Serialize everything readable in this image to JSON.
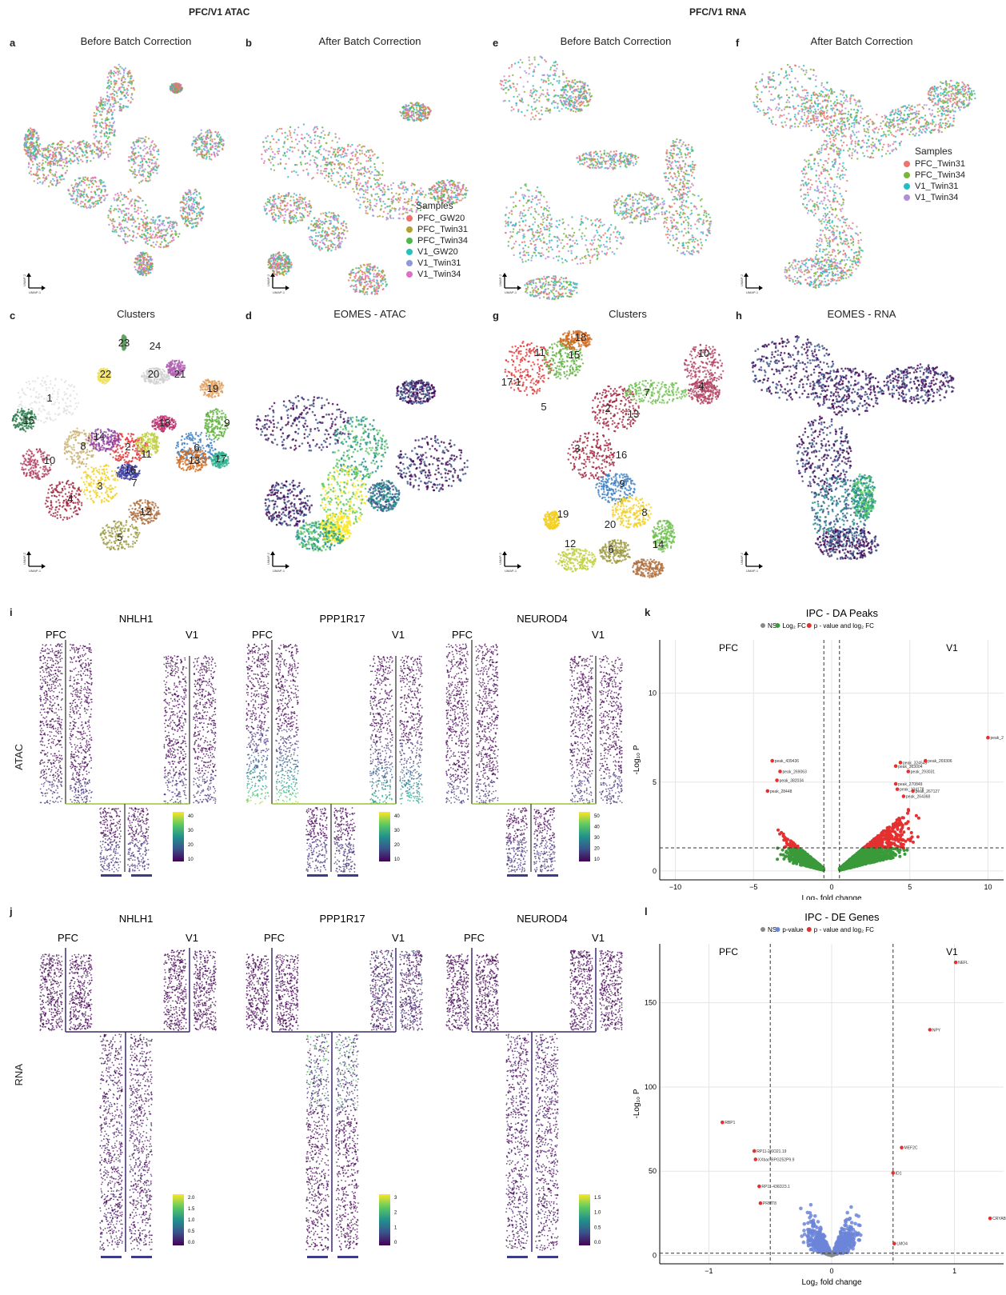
{
  "headings": {
    "atac": "PFC/V1 ATAC",
    "rna": "PFC/V1 RNA"
  },
  "panels": {
    "a": {
      "letter": "a",
      "title": "Before Batch Correction"
    },
    "b": {
      "letter": "b",
      "title": "After Batch Correction"
    },
    "c": {
      "letter": "c",
      "title": "Clusters"
    },
    "d": {
      "letter": "d",
      "title": "EOMES - ATAC"
    },
    "e": {
      "letter": "e",
      "title": "Before Batch Correction"
    },
    "f": {
      "letter": "f",
      "title": "After Batch Correction"
    },
    "g": {
      "letter": "g",
      "title": "Clusters"
    },
    "h": {
      "letter": "h",
      "title": "EOMES - RNA"
    },
    "i": {
      "letter": "i",
      "row_label": "ATAC"
    },
    "j": {
      "letter": "j",
      "row_label": "RNA"
    },
    "k": {
      "letter": "k"
    },
    "l": {
      "letter": "l"
    }
  },
  "umap_axes": {
    "x": "UMAP-1",
    "y": "UMAP-2"
  },
  "legend_atac": {
    "title": "Samples",
    "items": [
      {
        "label": "PFC_GW20",
        "color": "#f0736b"
      },
      {
        "label": "PFC_Twin31",
        "color": "#b5a033"
      },
      {
        "label": "PFC_Twin34",
        "color": "#4db848"
      },
      {
        "label": "V1_GW20",
        "color": "#27bfc0"
      },
      {
        "label": "V1_Twin31",
        "color": "#8e98d8"
      },
      {
        "label": "V1_Twin34",
        "color": "#de6fc6"
      }
    ]
  },
  "legend_rna": {
    "title": "Samples",
    "items": [
      {
        "label": "PFC_Twin31",
        "color": "#f0736b"
      },
      {
        "label": "PFC_Twin34",
        "color": "#77b83a"
      },
      {
        "label": "V1_Twin31",
        "color": "#27bcc4"
      },
      {
        "label": "V1_Twin34",
        "color": "#b08fd8"
      }
    ]
  },
  "clusters_atac": [
    "1",
    "2",
    "3",
    "4",
    "5",
    "6",
    "7",
    "8",
    "9",
    "10",
    "11",
    "12",
    "13",
    "14",
    "15",
    "16",
    "17",
    "18",
    "19",
    "20",
    "21",
    "22",
    "23",
    "24"
  ],
  "clusters_rna": [
    "1",
    "2",
    "3",
    "4",
    "5",
    "6",
    "7",
    "8",
    "9",
    "10",
    "11",
    "12",
    "13",
    "14",
    "15",
    "16",
    "17",
    "18",
    "19",
    "20"
  ],
  "violin": {
    "genes": [
      "NHLH1",
      "PPP1R17",
      "NEUROD4"
    ],
    "group_left": "PFC",
    "group_right": "V1",
    "atac_scales": [
      [
        "40",
        "30",
        "20",
        "10"
      ],
      [
        "40",
        "30",
        "20",
        "10"
      ],
      [
        "50",
        "40",
        "30",
        "20",
        "10"
      ]
    ],
    "rna_scales": [
      [
        "2.0",
        "1.5",
        "1.0",
        "0.5",
        "0.0"
      ],
      [
        "3",
        "2",
        "1",
        "0"
      ],
      [
        "1.5",
        "1.0",
        "0.5",
        "0.0"
      ]
    ]
  },
  "chart_data": [
    {
      "type": "scatter",
      "title": "IPC -  DA Peaks",
      "legend": [
        "NS",
        "Log₂ FC",
        "p - value and log₂ FC"
      ],
      "legend_colors": [
        "#888888",
        "#3a9a3a",
        "#e53030"
      ],
      "xlabel": "Log₂ fold change",
      "ylabel": "-Log₁₀ P",
      "xlim": [
        -11,
        11
      ],
      "ylim": [
        -0.5,
        13
      ],
      "xticks": [
        -10,
        -5,
        0,
        5,
        10
      ],
      "yticks": [
        0,
        5,
        10
      ],
      "group_labels": [
        "PFC",
        "V1"
      ],
      "thresholds": {
        "x": [
          -0.5,
          0.5
        ],
        "y": 1.3
      },
      "labeled_points": [
        {
          "label": "peak_439436",
          "x": -3.8,
          "y": 6.2
        },
        {
          "label": "peak_269063",
          "x": -3.3,
          "y": 5.6
        },
        {
          "label": "peak_382034",
          "x": -3.5,
          "y": 5.1
        },
        {
          "label": "peak_28448",
          "x": -4.1,
          "y": 4.5
        },
        {
          "label": "peak_324549",
          "x": 4.4,
          "y": 6.1
        },
        {
          "label": "peak_363004",
          "x": 4.1,
          "y": 5.9
        },
        {
          "label": "peak_269306",
          "x": 6.0,
          "y": 6.2
        },
        {
          "label": "peak_293031",
          "x": 4.9,
          "y": 5.6
        },
        {
          "label": "peak_270849",
          "x": 4.1,
          "y": 4.9
        },
        {
          "label": "peak_104178",
          "x": 4.2,
          "y": 4.6
        },
        {
          "label": "peak_267127",
          "x": 5.2,
          "y": 4.5
        },
        {
          "label": "peak_264368",
          "x": 4.6,
          "y": 4.2
        },
        {
          "label": "peak_2",
          "x": 10.0,
          "y": 7.5
        }
      ]
    },
    {
      "type": "scatter",
      "title": "IPC -  DE Genes",
      "legend": [
        "NS",
        "p-value",
        "p - value and log₂ FC"
      ],
      "legend_colors": [
        "#888888",
        "#6c85d8",
        "#e53030"
      ],
      "xlabel": "Log₂ fold change",
      "ylabel": "-Log₁₀ P",
      "xlim": [
        -1.4,
        1.4
      ],
      "ylim": [
        -5,
        185
      ],
      "xticks": [
        -1,
        0,
        1
      ],
      "yticks": [
        0,
        50,
        100,
        150
      ],
      "group_labels": [
        "PFC",
        "V1"
      ],
      "thresholds": {
        "x": [
          -0.5,
          0.5
        ],
        "y": 1.3
      },
      "labeled_points": [
        {
          "label": "RBP1",
          "x": -0.89,
          "y": 79
        },
        {
          "label": "RP11-2I6O21.19",
          "x": -0.63,
          "y": 62
        },
        {
          "label": "XXbac-BPG252P9.9",
          "x": -0.62,
          "y": 57
        },
        {
          "label": "RP11-436D23.1",
          "x": -0.59,
          "y": 41
        },
        {
          "label": "PRMT8",
          "x": -0.58,
          "y": 31
        },
        {
          "label": "NEFL",
          "x": 1.01,
          "y": 174
        },
        {
          "label": "NPY",
          "x": 0.8,
          "y": 134
        },
        {
          "label": "MEF2C",
          "x": 0.57,
          "y": 64
        },
        {
          "label": "ID1",
          "x": 0.5,
          "y": 49
        },
        {
          "label": "CRYAB",
          "x": 1.29,
          "y": 22
        },
        {
          "label": "LMO4",
          "x": 0.51,
          "y": 7
        }
      ]
    }
  ]
}
